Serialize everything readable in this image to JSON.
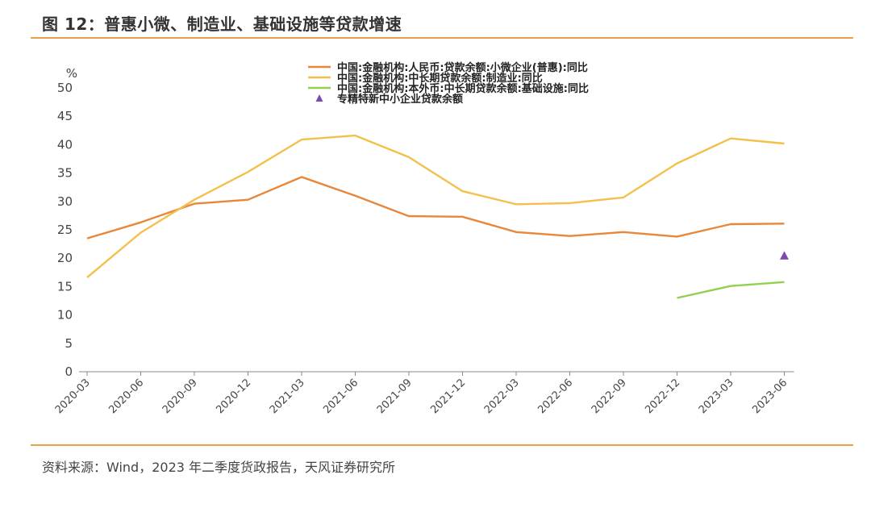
{
  "header": {
    "title": "图 12：普惠小微、制造业、基础设施等贷款增速"
  },
  "footer": {
    "source": "资料来源：Wind，2023 年二季度货政报告，天风证券研究所"
  },
  "colors": {
    "accent_rule": "#e8a04a"
  },
  "chart_data": {
    "type": "line",
    "title": "",
    "ylabel": "%",
    "xlabel": "",
    "ylim": [
      0,
      50
    ],
    "yticks": [
      0,
      5,
      10,
      15,
      20,
      25,
      30,
      35,
      40,
      45,
      50
    ],
    "grid": false,
    "legend_position": "top-center",
    "categories": [
      "2020-03",
      "2020-06",
      "2020-09",
      "2020-12",
      "2021-03",
      "2021-06",
      "2021-09",
      "2021-12",
      "2022-03",
      "2022-06",
      "2022-09",
      "2022-12",
      "2023-03",
      "2023-06"
    ],
    "series": [
      {
        "name": "中国:金融机构:人民币:贷款余额:小微企业(普惠):同比",
        "type": "line",
        "color": "#e8873a",
        "values": [
          23.5,
          26.3,
          29.6,
          30.3,
          34.3,
          31.0,
          27.4,
          27.3,
          24.6,
          23.9,
          24.6,
          23.8,
          26.0,
          26.1
        ]
      },
      {
        "name": "中国:金融机构:中长期贷款余额:制造业:同比",
        "type": "line",
        "color": "#f3c04b",
        "values": [
          16.6,
          24.5,
          30.3,
          35.2,
          40.9,
          41.6,
          37.8,
          31.8,
          29.5,
          29.7,
          30.7,
          36.7,
          41.1,
          40.2
        ]
      },
      {
        "name": "中国:金融机构:本外币:中长期贷款余额:基础设施:同比",
        "type": "line",
        "color": "#92d050",
        "values": [
          null,
          null,
          null,
          null,
          null,
          null,
          null,
          null,
          null,
          null,
          null,
          13.0,
          15.1,
          15.8
        ]
      },
      {
        "name": "专精特新中小企业贷款余额",
        "type": "marker",
        "marker": "triangle",
        "color": "#7d4bb0",
        "values": [
          null,
          null,
          null,
          null,
          null,
          null,
          null,
          null,
          null,
          null,
          null,
          null,
          null,
          20.4
        ]
      }
    ]
  }
}
